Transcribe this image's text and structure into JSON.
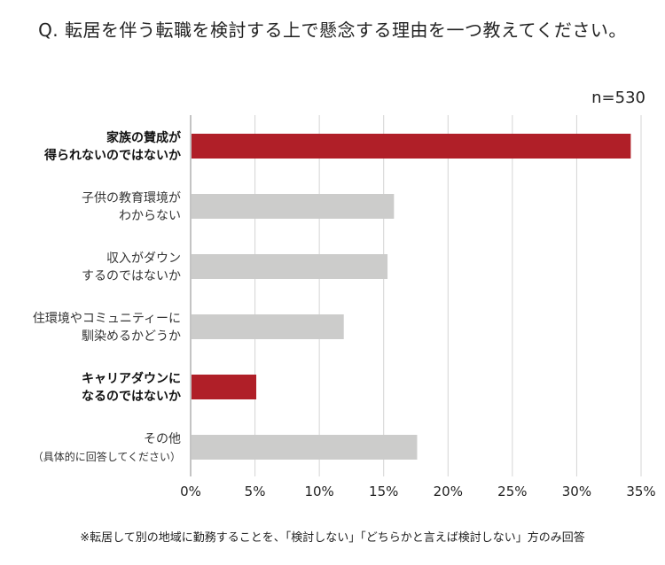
{
  "title": "Q. 転居を伴う転職を検討する上で懸念する理由を一つ教えてください。",
  "sample_size": "n=530",
  "footnote": "※転居して別の地域に勤務することを、「検討しない」「どちらかと言えば検討しない」方のみ回答",
  "colors": {
    "highlight": "#b01f28",
    "normal": "#cccccb",
    "grid": "#d4d4d4",
    "axis": "#888888"
  },
  "chart_data": {
    "type": "bar",
    "orientation": "horizontal",
    "categories": [
      {
        "lines": [
          "家族の賛成が",
          "得られないのではないか"
        ],
        "highlight": true
      },
      {
        "lines": [
          "子供の教育環境が",
          "わからない"
        ],
        "highlight": false
      },
      {
        "lines": [
          "収入がダウン",
          "するのではないか"
        ],
        "highlight": false
      },
      {
        "lines": [
          "住環境やコミュニティーに",
          "馴染めるかどうか"
        ],
        "highlight": false
      },
      {
        "lines": [
          "キャリアダウンに",
          "なるのではないか"
        ],
        "highlight": true
      },
      {
        "lines": [
          "その他",
          "（具体的に回答してください）"
        ],
        "highlight": false
      }
    ],
    "values": [
      34.2,
      15.8,
      15.3,
      11.9,
      5.1,
      17.6
    ],
    "xlim": [
      0,
      35
    ],
    "x_ticks": [
      0,
      5,
      10,
      15,
      20,
      25,
      30,
      35
    ],
    "tick_format": "%",
    "grid": true
  }
}
